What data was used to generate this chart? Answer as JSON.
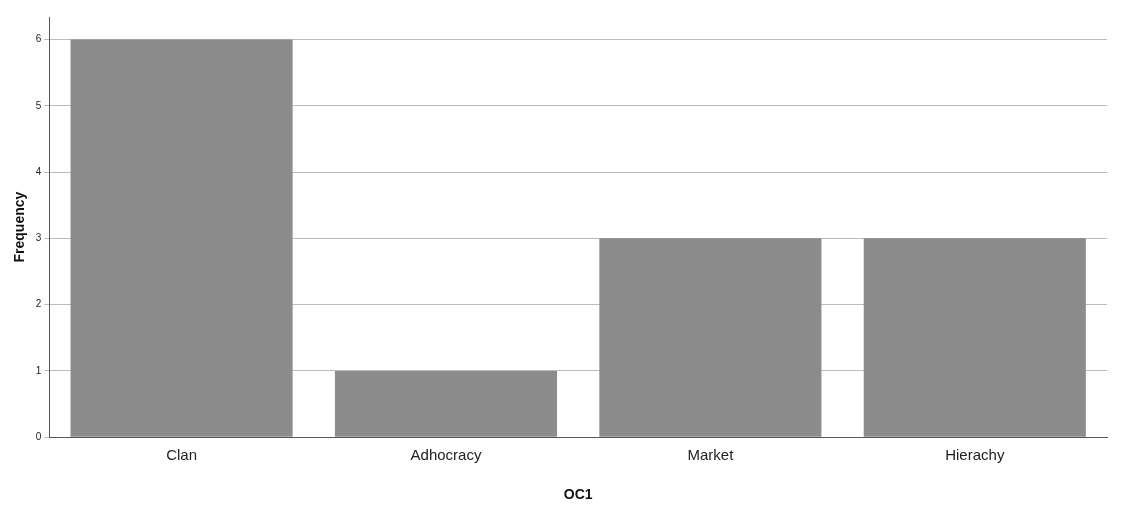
{
  "chart_data": {
    "type": "bar",
    "xlabel": "OC1",
    "ylabel": "Frequency",
    "categories": [
      "Clan",
      "Adhocracy",
      "Market",
      "Hierachy"
    ],
    "values": [
      6,
      1,
      3,
      3
    ],
    "color": "#8c8c8c",
    "ylim": [
      0,
      6.34
    ],
    "yticks": [
      0,
      1,
      2,
      3,
      4,
      5,
      6
    ],
    "grid": "y",
    "legend": false
  }
}
